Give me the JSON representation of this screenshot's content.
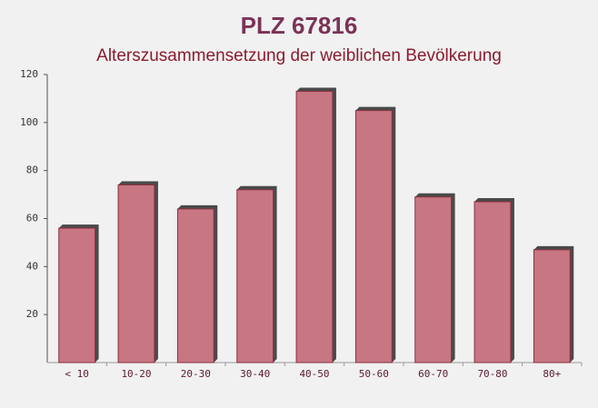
{
  "chart_data": {
    "type": "bar",
    "title": "PLZ 67816",
    "subtitle": "Alterszusammensetzung der weiblichen Bevölkerung",
    "categories": [
      "< 10",
      "10-20",
      "20-30",
      "30-40",
      "40-50",
      "50-60",
      "60-70",
      "70-80",
      "80+"
    ],
    "values": [
      56,
      74,
      64,
      72,
      113,
      105,
      69,
      67,
      47
    ],
    "color": "#c0606e",
    "ylim": [
      0,
      120
    ],
    "yticks": [
      20,
      40,
      60,
      80,
      100,
      120
    ]
  }
}
